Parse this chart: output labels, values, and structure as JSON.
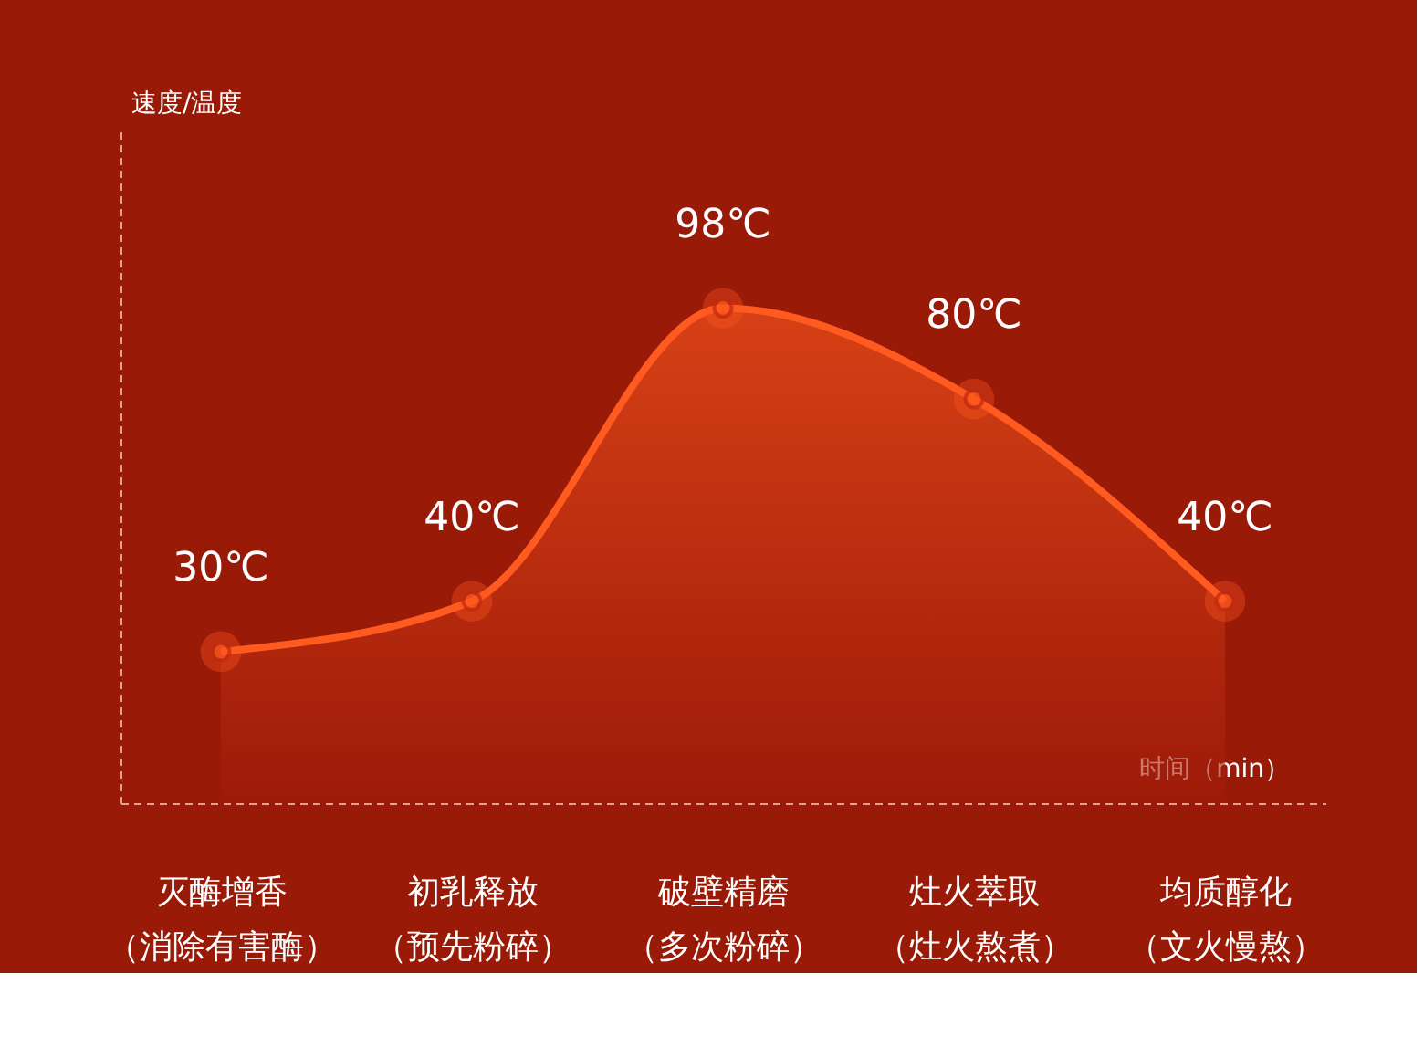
{
  "chart_data": {
    "type": "area",
    "xlabel": "时间（min）",
    "annotations": [
      "速度/温度"
    ],
    "categories": [
      "灭酶增香（消除有害酶）",
      "初乳释放（预先粉碎）",
      "破壁精磨（多次粉碎）",
      "灶火萃取（灶火熬煮）",
      "均质醇化（文火慢熬）"
    ],
    "values": [
      30,
      40,
      98,
      80,
      40
    ],
    "value_labels": [
      "30℃",
      "40℃",
      "98℃",
      "80℃",
      "40℃"
    ],
    "tick_labels": "x",
    "color": "#ff5a1f",
    "marker": "circle"
  }
}
